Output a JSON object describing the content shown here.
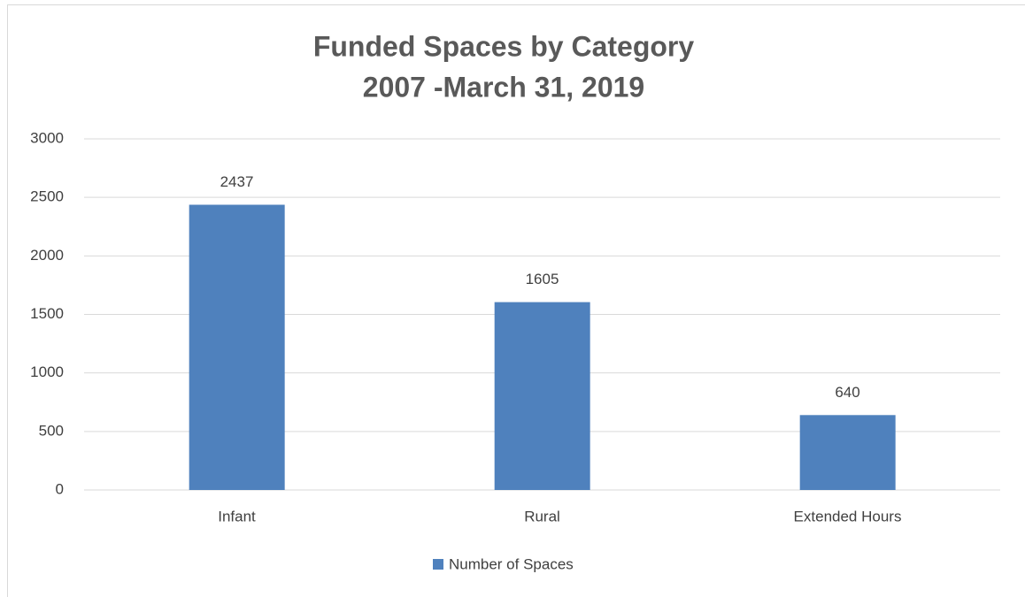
{
  "chart_data": {
    "type": "bar",
    "title": "Funded Spaces by Category",
    "subtitle": "2007 -March 31, 2019",
    "categories": [
      "Infant",
      "Rural",
      "Extended Hours"
    ],
    "series": [
      {
        "name": "Number of Spaces",
        "color": "#4f81bd",
        "values": [
          2437,
          1605,
          640
        ]
      }
    ],
    "ylim": [
      0,
      3000
    ],
    "yticks": [
      0,
      500,
      1000,
      1500,
      2000,
      2500,
      3000
    ],
    "grid": true,
    "legend": "bottom"
  }
}
